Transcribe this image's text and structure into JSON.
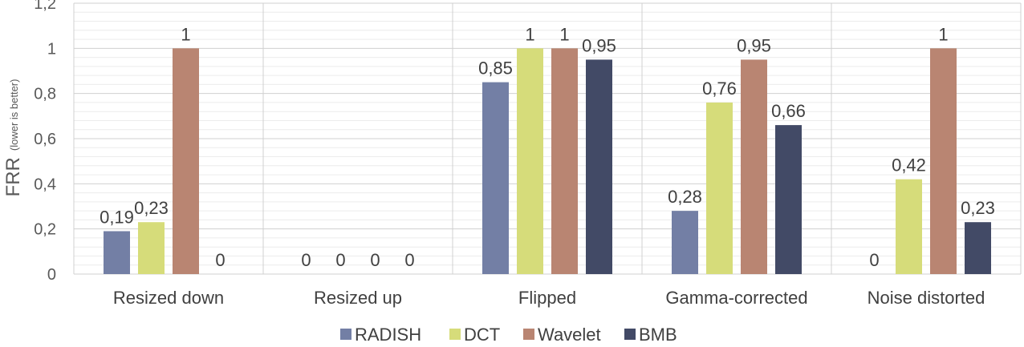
{
  "chart_data": {
    "type": "bar",
    "ylabel": "FRR",
    "ylabel_sub": "(lower is better)",
    "ylim": [
      0,
      1.2
    ],
    "yticks": [
      "0",
      "0,2",
      "0,4",
      "0,6",
      "0,8",
      "1",
      "1,2"
    ],
    "grid": true,
    "legend_position": "bottom",
    "categories": [
      "Resized down",
      "Resized up",
      "Flipped",
      "Gamma-corrected",
      "Noise distorted"
    ],
    "series": [
      {
        "name": "RADISH",
        "color": "#737fa5",
        "values": [
          0.19,
          0,
          0.85,
          0.28,
          0
        ],
        "labels": [
          "0,19",
          "0",
          "0,85",
          "0,28",
          "0"
        ]
      },
      {
        "name": "DCT",
        "color": "#d6dc7a",
        "values": [
          0.23,
          0,
          1,
          0.76,
          0.42
        ],
        "labels": [
          "0,23",
          "0",
          "1",
          "0,76",
          "0,42"
        ]
      },
      {
        "name": "Wavelet",
        "color": "#b98572",
        "values": [
          1,
          0,
          1,
          0.95,
          1
        ],
        "labels": [
          "1",
          "0",
          "1",
          "0,95",
          "1"
        ]
      },
      {
        "name": "BMB",
        "color": "#424a66",
        "values": [
          0,
          0,
          0.95,
          0.66,
          0.23
        ],
        "labels": [
          "0",
          "0",
          "0,95",
          "0,66",
          "0,23"
        ]
      }
    ]
  }
}
